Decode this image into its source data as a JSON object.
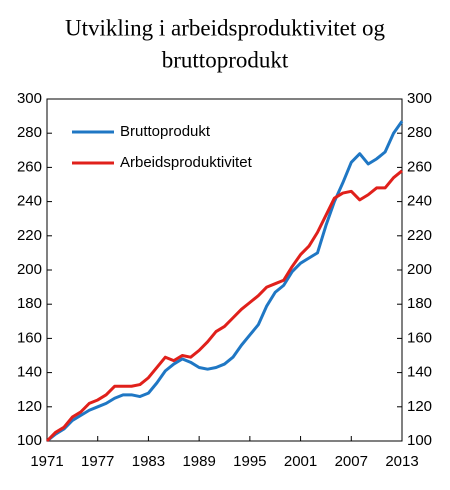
{
  "chart_data": {
    "type": "line",
    "title_lines": [
      "Utvikling i arbeidsproduktivitet og",
      "bruttoprodukt"
    ],
    "x": [
      1971,
      1972,
      1973,
      1974,
      1975,
      1976,
      1977,
      1978,
      1979,
      1980,
      1981,
      1982,
      1983,
      1984,
      1985,
      1986,
      1987,
      1988,
      1989,
      1990,
      1991,
      1992,
      1993,
      1994,
      1995,
      1996,
      1997,
      1998,
      1999,
      2000,
      2001,
      2002,
      2003,
      2004,
      2005,
      2006,
      2007,
      2008,
      2009,
      2010,
      2011,
      2012,
      2013
    ],
    "series": [
      {
        "name": "Bruttoprodukt",
        "color": "#1f77c4",
        "values": [
          100,
          104,
          107,
          112,
          115,
          118,
          120,
          122,
          125,
          127,
          127,
          126,
          128,
          134,
          141,
          145,
          148,
          146,
          143,
          142,
          143,
          145,
          149,
          156,
          162,
          168,
          179,
          187,
          191,
          199,
          204,
          207,
          210,
          226,
          240,
          251,
          263,
          268,
          262,
          265,
          269,
          280,
          287
        ]
      },
      {
        "name": "Arbeidsproduktivitet",
        "color": "#e0201b",
        "values": [
          100,
          105,
          108,
          114,
          117,
          122,
          124,
          127,
          132,
          132,
          132,
          133,
          137,
          143,
          149,
          147,
          150,
          149,
          153,
          158,
          164,
          167,
          172,
          177,
          181,
          185,
          190,
          192,
          194,
          202,
          209,
          214,
          222,
          232,
          242,
          245,
          246,
          241,
          244,
          248,
          248,
          254,
          258
        ]
      }
    ],
    "xlim": [
      1971,
      2013
    ],
    "xticks": [
      1971,
      1977,
      1983,
      1989,
      1995,
      2001,
      2007,
      2013
    ],
    "ylim": [
      100,
      300
    ],
    "yticks": [
      100,
      120,
      140,
      160,
      180,
      200,
      220,
      240,
      260,
      280,
      300
    ],
    "y2lim": [
      100,
      300
    ],
    "y2ticks": [
      100,
      120,
      140,
      160,
      180,
      200,
      220,
      240,
      260,
      280,
      300
    ],
    "legend": "upper-left"
  }
}
